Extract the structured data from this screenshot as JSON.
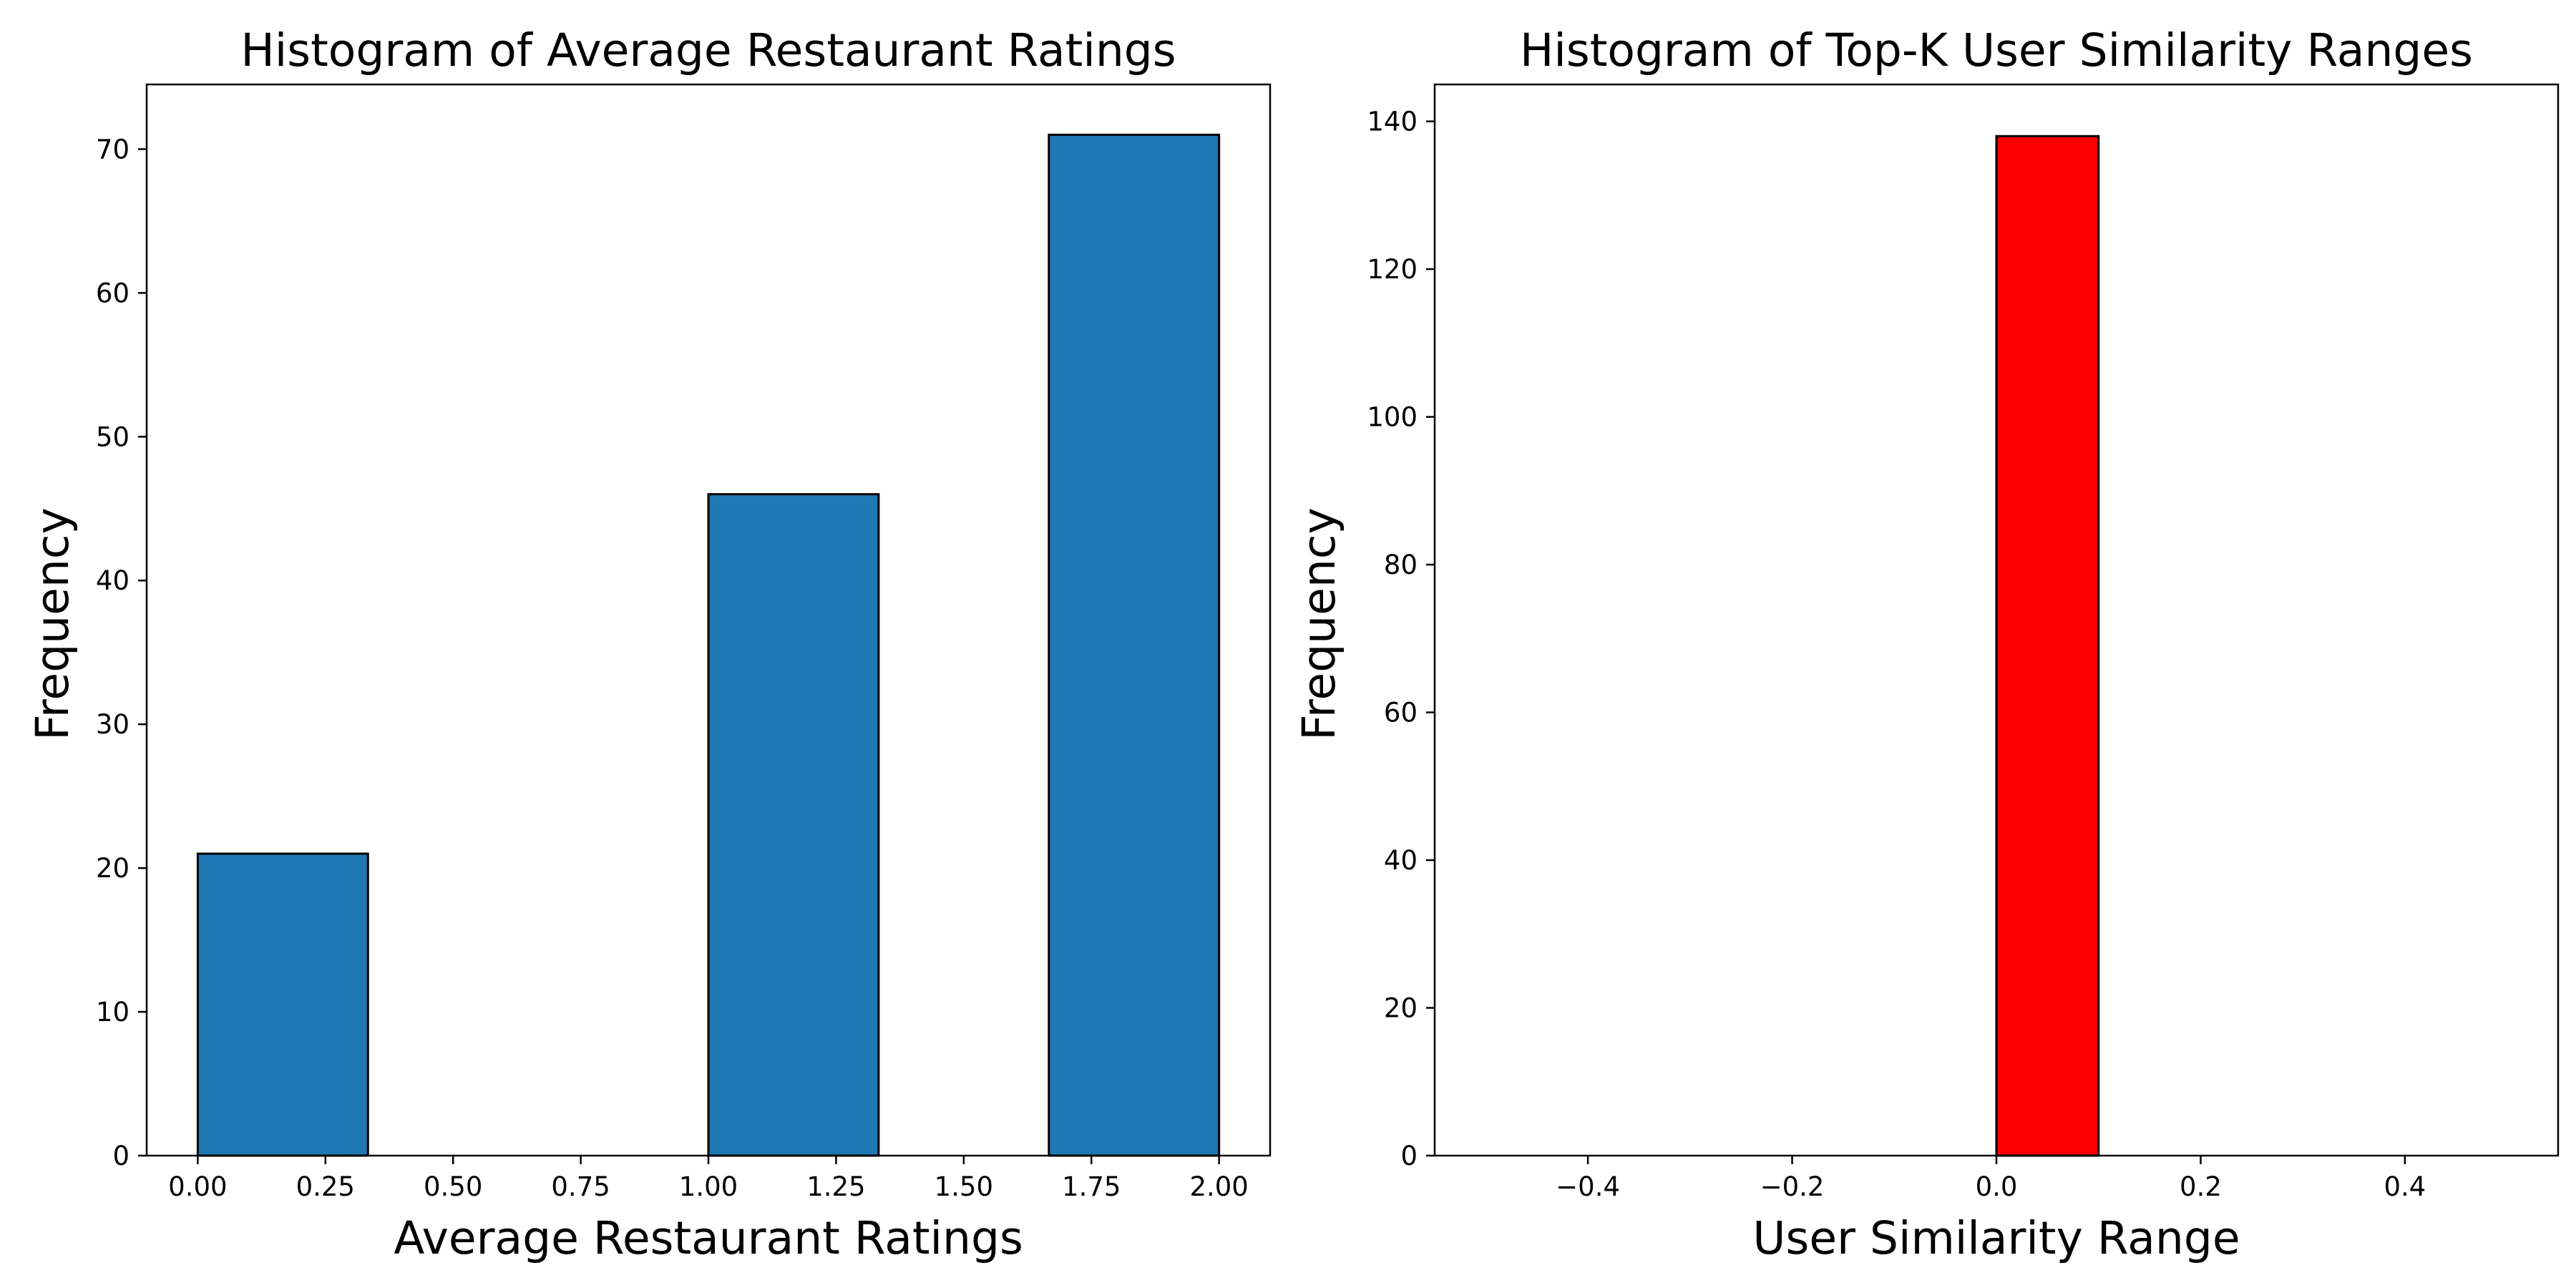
{
  "chart_data": [
    {
      "type": "bar",
      "title": "Histogram of Average Restaurant Ratings",
      "xlabel": "Average Restaurant Ratings",
      "ylabel": "Frequency",
      "xlim": [
        -0.1,
        2.1
      ],
      "ylim": [
        0,
        74.5
      ],
      "xticks": [
        "0.00",
        "0.25",
        "0.50",
        "0.75",
        "1.00",
        "1.25",
        "1.50",
        "1.75",
        "2.00"
      ],
      "yticks": [
        "0",
        "10",
        "20",
        "30",
        "40",
        "50",
        "60",
        "70"
      ],
      "bin_edges": [
        0.0,
        0.3333,
        0.6667,
        1.0,
        1.3333,
        1.6667,
        2.0
      ],
      "values": [
        21,
        0,
        0,
        46,
        0,
        71
      ],
      "bar_color": "#1f77b4",
      "edge_color": "#000000",
      "grid": false
    },
    {
      "type": "bar",
      "title": "Histogram of Top-K User Similarity Ranges",
      "xlabel": "User Similarity Range",
      "ylabel": "Frequency",
      "xlim": [
        -0.55,
        0.55
      ],
      "ylim": [
        0,
        145
      ],
      "xticks": [
        "−0.4",
        "−0.2",
        "0.0",
        "0.2",
        "0.4"
      ],
      "yticks": [
        "0",
        "20",
        "40",
        "60",
        "80",
        "100",
        "120",
        "140"
      ],
      "bin_edges": [
        -0.5,
        -0.4,
        -0.3,
        -0.2,
        -0.1,
        0.0,
        0.1,
        0.2,
        0.3,
        0.4,
        0.5
      ],
      "values": [
        0,
        0,
        0,
        0,
        0,
        138,
        0,
        0,
        0,
        0
      ],
      "bar_color": "#ff0000",
      "edge_color": "#000000",
      "grid": false
    }
  ]
}
